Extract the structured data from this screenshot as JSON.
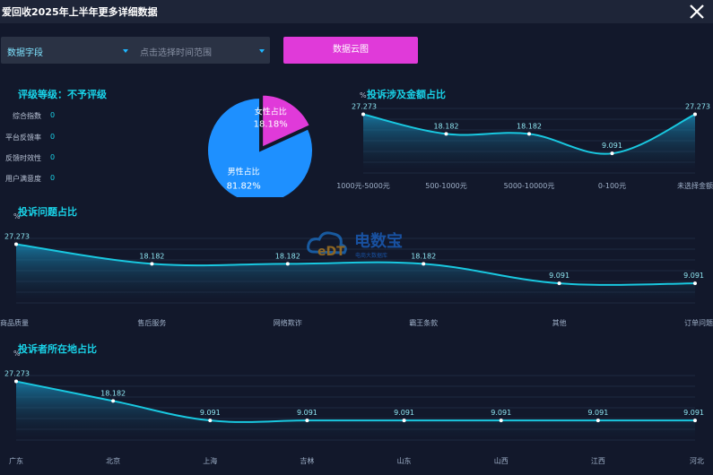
{
  "title": "爱回收2025年上半年更多详细数据",
  "toolbar": {
    "field_select": "数据字段",
    "time_range_placeholder": "点击选择时间范围",
    "cloud_button": "数据云图"
  },
  "rating": {
    "heading": "评级等级：不予评级",
    "metrics": [
      {
        "label": "综合指数",
        "value": "0"
      },
      {
        "label": "平台反馈率",
        "value": "0"
      },
      {
        "label": "反馈时效性",
        "value": "0"
      },
      {
        "label": "用户满意度",
        "value": "0"
      }
    ]
  },
  "watermark": {
    "text": "电数宝",
    "sub": "电商大数据库",
    "logo": "eDT"
  },
  "chart_data": [
    {
      "type": "pie",
      "slices": [
        {
          "label": "女性占比",
          "value_label": "18.18%",
          "value": 18.18,
          "color": "#e03ad9"
        },
        {
          "label": "男性占比",
          "value_label": "81.82%",
          "value": 81.82,
          "color": "#1e90ff"
        }
      ]
    },
    {
      "type": "area",
      "title": "投诉涉及金额占比",
      "ylabel": "%",
      "categories": [
        "1000元-5000元",
        "500-1000元",
        "5000-10000元",
        "0-100元",
        "未选择金额"
      ],
      "values": [
        27.273,
        18.182,
        18.182,
        9.091,
        27.273
      ],
      "ylim": [
        0,
        30
      ]
    },
    {
      "type": "area",
      "title": "投诉问题占比",
      "ylabel": "%",
      "categories": [
        "商品质量",
        "售后服务",
        "网络欺诈",
        "霸王条款",
        "其他",
        "订单问题"
      ],
      "values": [
        27.273,
        18.182,
        18.182,
        18.182,
        9.091,
        9.091
      ],
      "ylim": [
        0,
        30
      ]
    },
    {
      "type": "area",
      "title": "投诉者所在地占比",
      "ylabel": "%",
      "categories": [
        "广东",
        "北京",
        "上海",
        "吉林",
        "山东",
        "山西",
        "江西",
        "河北"
      ],
      "values": [
        27.273,
        18.182,
        9.091,
        9.091,
        9.091,
        9.091,
        9.091,
        9.091
      ],
      "ylim": [
        0,
        30
      ]
    }
  ]
}
